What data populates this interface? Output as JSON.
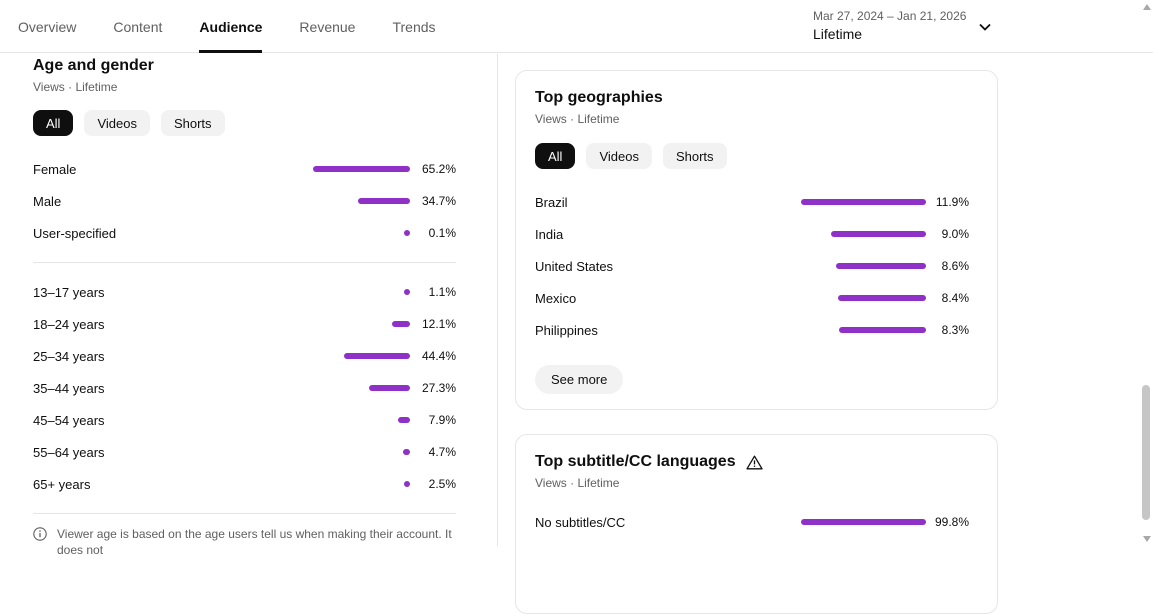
{
  "colors": {
    "bar_purple": "#8f30c7"
  },
  "header": {
    "tabs": [
      "Overview",
      "Content",
      "Audience",
      "Revenue",
      "Trends"
    ],
    "active_tab": "Audience",
    "date_range": "Mar 27, 2024 – Jan 21, 2026",
    "date_mode": "Lifetime"
  },
  "age_gender": {
    "title": "Age and gender",
    "subtitle": "Views · Lifetime",
    "filters": [
      "All",
      "Videos",
      "Shorts"
    ],
    "active_filter": "All",
    "bar_scale_max_pct": 65.2,
    "gender_rows": [
      {
        "label": "Female",
        "pct": 65.2,
        "display": "65.2%"
      },
      {
        "label": "Male",
        "pct": 34.7,
        "display": "34.7%"
      },
      {
        "label": "User-specified",
        "pct": 0.1,
        "display": "0.1%"
      }
    ],
    "age_rows": [
      {
        "label": "13–17 years",
        "pct": 1.1,
        "display": "1.1%"
      },
      {
        "label": "18–24 years",
        "pct": 12.1,
        "display": "12.1%"
      },
      {
        "label": "25–34 years",
        "pct": 44.4,
        "display": "44.4%"
      },
      {
        "label": "35–44 years",
        "pct": 27.3,
        "display": "27.3%"
      },
      {
        "label": "45–54 years",
        "pct": 7.9,
        "display": "7.9%"
      },
      {
        "label": "55–64 years",
        "pct": 4.7,
        "display": "4.7%"
      },
      {
        "label": "65+ years",
        "pct": 2.5,
        "display": "2.5%"
      }
    ],
    "footnote": "Viewer age is based on the age users tell us when making their account. It does not"
  },
  "top_geographies": {
    "title": "Top geographies",
    "subtitle": "Views · Lifetime",
    "filters": [
      "All",
      "Videos",
      "Shorts"
    ],
    "active_filter": "All",
    "rows": [
      {
        "label": "Brazil",
        "pct": 11.9,
        "display": "11.9%"
      },
      {
        "label": "India",
        "pct": 9.0,
        "display": "9.0%"
      },
      {
        "label": "United States",
        "pct": 8.6,
        "display": "8.6%"
      },
      {
        "label": "Mexico",
        "pct": 8.4,
        "display": "8.4%"
      },
      {
        "label": "Philippines",
        "pct": 8.3,
        "display": "8.3%"
      }
    ],
    "see_more_label": "See more"
  },
  "top_subtitles": {
    "title": "Top subtitle/CC languages",
    "subtitle": "Views · Lifetime",
    "rows": [
      {
        "label": "No subtitles/CC",
        "pct": 99.8,
        "display": "99.8%"
      }
    ]
  }
}
